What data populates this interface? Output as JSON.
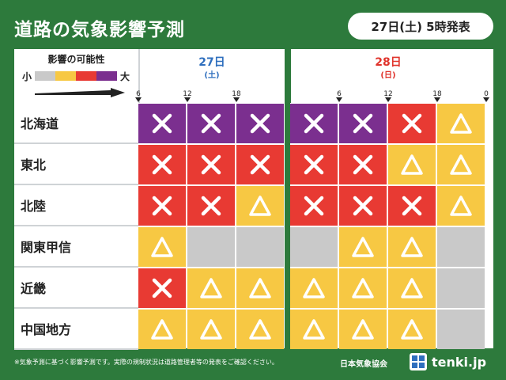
{
  "header": {
    "title": "道路の気象影響予測",
    "issued": "27日(土) 5時発表"
  },
  "legend": {
    "title": "影響の可能性",
    "low": "小",
    "high": "大",
    "colors": [
      "#c9c9c9",
      "#f7c843",
      "#e83a33",
      "#7b2f8f"
    ]
  },
  "days": [
    {
      "label": "27日",
      "weekday": "(土)",
      "color": "#2f6fbe",
      "ticks": [
        "6",
        "12",
        "18"
      ]
    },
    {
      "label": "28日",
      "weekday": "(日)",
      "color": "#e0342c",
      "ticks": [
        "6",
        "12",
        "18",
        "0"
      ]
    }
  ],
  "symbols": {
    "x": "cross-icon",
    "t": "triangle-icon",
    "n": "none"
  },
  "level_colors": {
    "purple": "#7b2f8f",
    "red": "#e83a33",
    "yellow": "#f7c843",
    "gray": "#c9c9c9"
  },
  "rows": [
    {
      "region": "北海道",
      "cells": [
        [
          "purple",
          "x"
        ],
        [
          "purple",
          "x"
        ],
        [
          "purple",
          "x"
        ],
        [
          "purple",
          "x"
        ],
        [
          "purple",
          "x"
        ],
        [
          "red",
          "x"
        ],
        [
          "yellow",
          "t"
        ]
      ]
    },
    {
      "region": "東北",
      "cells": [
        [
          "red",
          "x"
        ],
        [
          "red",
          "x"
        ],
        [
          "red",
          "x"
        ],
        [
          "red",
          "x"
        ],
        [
          "red",
          "x"
        ],
        [
          "yellow",
          "t"
        ],
        [
          "yellow",
          "t"
        ]
      ]
    },
    {
      "region": "北陸",
      "cells": [
        [
          "red",
          "x"
        ],
        [
          "red",
          "x"
        ],
        [
          "yellow",
          "t"
        ],
        [
          "red",
          "x"
        ],
        [
          "red",
          "x"
        ],
        [
          "red",
          "x"
        ],
        [
          "yellow",
          "t"
        ]
      ]
    },
    {
      "region": "関東甲信",
      "cells": [
        [
          "yellow",
          "t"
        ],
        [
          "gray",
          "n"
        ],
        [
          "gray",
          "n"
        ],
        [
          "gray",
          "n"
        ],
        [
          "yellow",
          "t"
        ],
        [
          "yellow",
          "t"
        ],
        [
          "gray",
          "n"
        ]
      ]
    },
    {
      "region": "近畿",
      "cells": [
        [
          "red",
          "x"
        ],
        [
          "yellow",
          "t"
        ],
        [
          "yellow",
          "t"
        ],
        [
          "yellow",
          "t"
        ],
        [
          "yellow",
          "t"
        ],
        [
          "yellow",
          "t"
        ],
        [
          "gray",
          "n"
        ]
      ]
    },
    {
      "region": "中国地方",
      "cells": [
        [
          "yellow",
          "t"
        ],
        [
          "yellow",
          "t"
        ],
        [
          "yellow",
          "t"
        ],
        [
          "yellow",
          "t"
        ],
        [
          "yellow",
          "t"
        ],
        [
          "yellow",
          "t"
        ],
        [
          "gray",
          "n"
        ]
      ]
    }
  ],
  "footer": {
    "note": "※気象予測に基づく影響予測です。実際の規制状況は道路管理者等の発表をご確認ください。",
    "agency": "日本気象協会",
    "logo": "tenki.jp"
  }
}
